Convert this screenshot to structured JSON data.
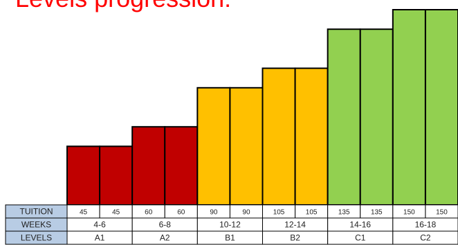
{
  "title": "Levels progression:",
  "chart_data": {
    "type": "bar",
    "title": "Levels progression:",
    "xlabel": "",
    "ylabel": "",
    "ylim": [
      0,
      150
    ],
    "grid": false,
    "categories": [
      "A1",
      "A1",
      "A2",
      "A2",
      "B1",
      "B1",
      "B2",
      "B2",
      "C1",
      "C1",
      "C2",
      "C2"
    ],
    "values": [
      45,
      45,
      60,
      60,
      90,
      90,
      105,
      105,
      135,
      135,
      150,
      150
    ],
    "bar_colors": [
      "#c00000",
      "#c00000",
      "#c00000",
      "#c00000",
      "#ffc000",
      "#ffc000",
      "#ffc000",
      "#ffc000",
      "#92d050",
      "#92d050",
      "#92d050",
      "#92d050"
    ],
    "table": {
      "rows": [
        {
          "label": "TUITION",
          "cells": [
            "45",
            "45",
            "60",
            "60",
            "90",
            "90",
            "105",
            "105",
            "135",
            "135",
            "150",
            "150"
          ]
        },
        {
          "label": "WEEKS",
          "cells": [
            "4-6",
            "6-8",
            "10-12",
            "12-14",
            "14-16",
            "16-18"
          ]
        },
        {
          "label": "LEVELS",
          "cells": [
            "A1",
            "A2",
            "B1",
            "B2",
            "C1",
            "C2"
          ]
        }
      ]
    }
  }
}
